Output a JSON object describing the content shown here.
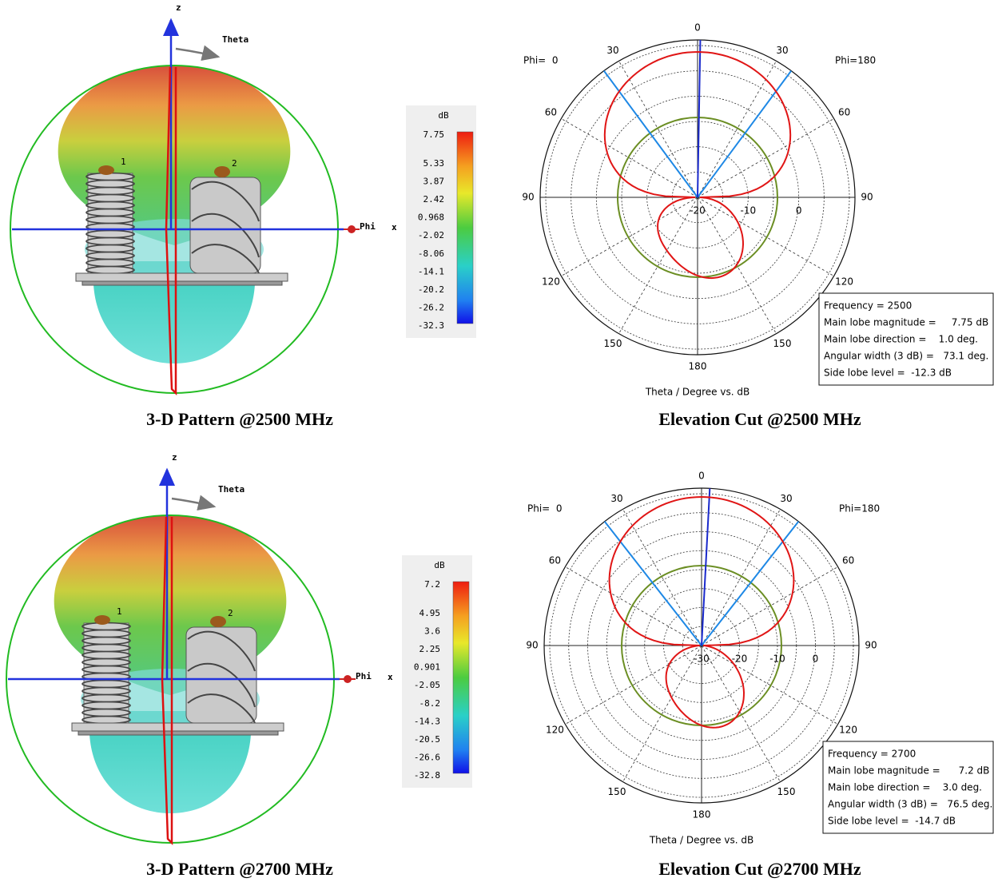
{
  "pattern_3d": [
    {
      "caption": "3-D Pattern @2500 MHz",
      "z_label": "z",
      "theta_label": "Theta",
      "phi_label": "Phi",
      "x_label": "x",
      "port_labels": [
        "1",
        "2"
      ],
      "colorbar": {
        "unit": "dB",
        "labels": [
          "7.75",
          "5.33",
          "3.87",
          "2.42",
          "0.968",
          "-2.02",
          "-8.06",
          "-14.1",
          "-20.2",
          "-26.2",
          "-32.3"
        ]
      }
    },
    {
      "caption": "3-D Pattern @2700 MHz",
      "z_label": "z",
      "theta_label": "Theta",
      "phi_label": "Phi",
      "x_label": "x",
      "port_labels": [
        "1",
        "2"
      ],
      "colorbar": {
        "unit": "dB",
        "labels": [
          "7.2",
          "4.95",
          "3.6",
          "2.25",
          "0.901",
          "-2.05",
          "-8.2",
          "-14.3",
          "-20.5",
          "-26.6",
          "-32.8"
        ]
      }
    }
  ],
  "elevation_cut": [
    {
      "caption": "Elevation Cut @2500 MHz",
      "phi_left": "Phi=  0",
      "phi_right": "Phi=180",
      "angle_labels": [
        "0",
        "30",
        "30",
        "60",
        "60",
        "90",
        "90",
        "120",
        "120",
        "150",
        "150",
        "180"
      ],
      "ring_labels": [
        "-20",
        "-10",
        "0"
      ],
      "axis_title": "Theta / Degree vs. dB",
      "info": [
        "Frequency = 2500",
        "Main lobe magnitude =     7.75 dB",
        "Main lobe direction =    1.0 deg.",
        "Angular width (3 dB) =   73.1 deg.",
        "Side lobe level =  -12.3 dB"
      ]
    },
    {
      "caption": "Elevation Cut @2700 MHz",
      "phi_left": "Phi=  0",
      "phi_right": "Phi=180",
      "angle_labels": [
        "0",
        "30",
        "30",
        "60",
        "60",
        "90",
        "90",
        "120",
        "120",
        "150",
        "150",
        "180"
      ],
      "ring_labels": [
        "-30",
        "-20",
        "-10",
        "0"
      ],
      "axis_title": "Theta / Degree vs. dB",
      "info": [
        "Frequency = 2700",
        "Main lobe magnitude =      7.2 dB",
        "Main lobe direction =    3.0 deg.",
        "Angular width (3 dB) =   76.5 deg.",
        "Side lobe level =  -14.7 dB"
      ]
    }
  ]
}
